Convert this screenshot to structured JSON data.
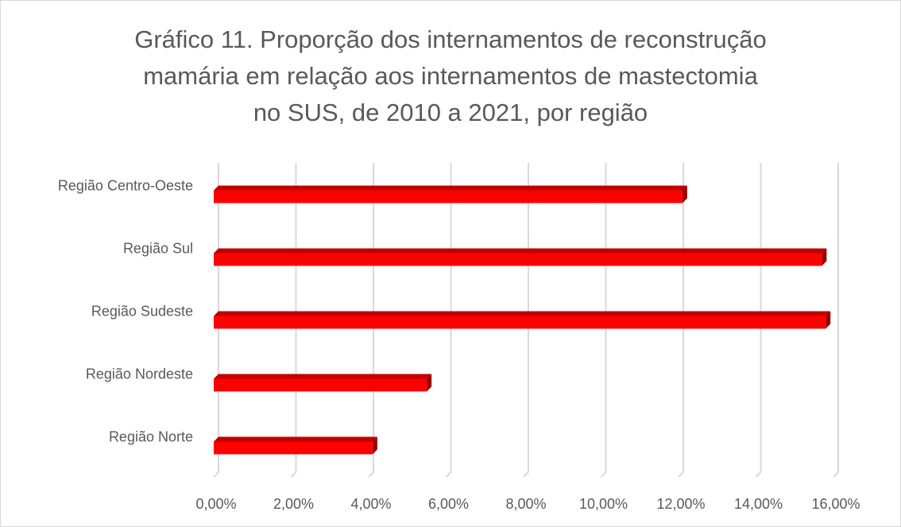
{
  "chart_data": {
    "type": "barh",
    "title": [
      "Gráfico 11. Proporção dos internamentos de reconstrução",
      "mamária em relação aos internamentos de mastectomia",
      "no SUS, de 2010 a 2021, por região"
    ],
    "categories": [
      "Região Norte",
      "Região Nordeste",
      "Região Sudeste",
      "Região Sul",
      "Região Centro-Oeste"
    ],
    "values": [
      4.1,
      5.5,
      15.8,
      15.7,
      12.1
    ],
    "color": "#ff0000",
    "xlim": [
      0,
      16
    ],
    "xticks": [
      {
        "value": 0,
        "label": "0,00%"
      },
      {
        "value": 2,
        "label": "2,00%"
      },
      {
        "value": 4,
        "label": "4,00%"
      },
      {
        "value": 6,
        "label": "6,00%"
      },
      {
        "value": 8,
        "label": "8,00%"
      },
      {
        "value": 10,
        "label": "10,00%"
      },
      {
        "value": 12,
        "label": "12,00%"
      },
      {
        "value": 14,
        "label": "14,00%"
      },
      {
        "value": 16,
        "label": "16,00%"
      }
    ],
    "grid": true
  }
}
